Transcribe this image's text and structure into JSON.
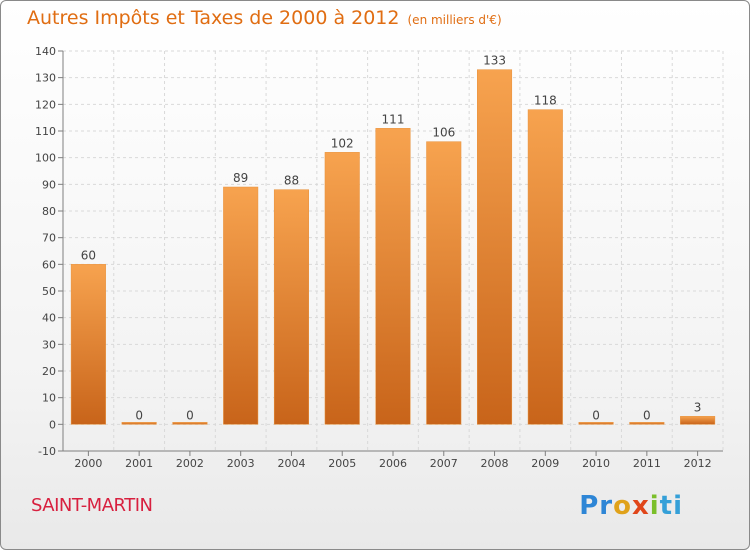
{
  "header": {
    "title": "Autres Impôts et Taxes de 2000 à 2012",
    "subtitle": "(en milliers d'€)"
  },
  "footer": {
    "place": "SAINT-MARTIN",
    "logo_parts": [
      "Pr",
      "o",
      "x",
      "i",
      "ti"
    ]
  },
  "colors": {
    "bar_light": "#f7a34f",
    "bar_dark": "#c8641a",
    "title": "#e06d12",
    "place": "#d8203f",
    "grid": "#d9d9d9"
  },
  "chart_data": {
    "type": "bar",
    "title": "Autres Impôts et Taxes de 2000 à 2012",
    "subtitle": "(en milliers d'€)",
    "xlabel": "",
    "ylabel": "",
    "categories": [
      "2000",
      "2001",
      "2002",
      "2003",
      "2004",
      "2005",
      "2006",
      "2007",
      "2008",
      "2009",
      "2010",
      "2011",
      "2012"
    ],
    "values": [
      60,
      0,
      0,
      89,
      88,
      102,
      111,
      106,
      133,
      118,
      0,
      0,
      3
    ],
    "data_labels": [
      "60",
      "0",
      "0",
      "89",
      "88",
      "102",
      "111",
      "106",
      "133",
      "118",
      "0",
      "0",
      "3"
    ],
    "ylim": [
      -10,
      140
    ],
    "yticks": [
      -10,
      0,
      10,
      20,
      30,
      40,
      50,
      60,
      70,
      80,
      90,
      100,
      110,
      120,
      130,
      140
    ],
    "grid": true
  }
}
